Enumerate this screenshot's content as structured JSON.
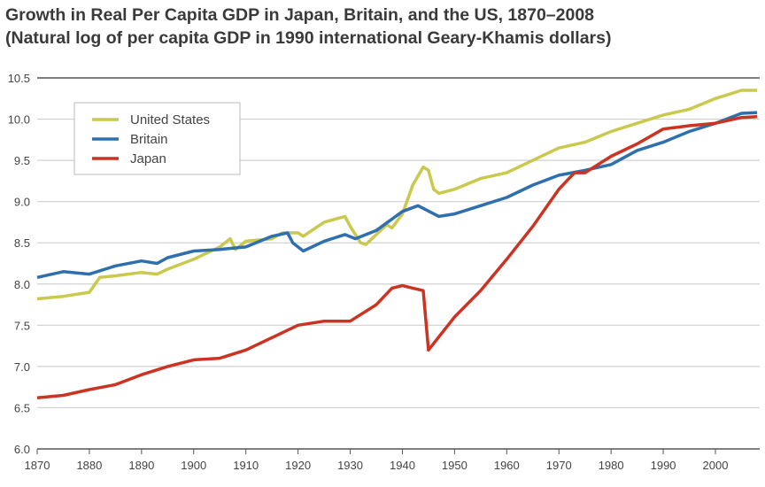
{
  "chart_data": {
    "type": "line",
    "title": "Growth in Real Per Capita GDP in Japan, Britain, and the US, 1870–2008",
    "subtitle": "(Natural log of per capita GDP in 1990 international Geary-Khamis dollars)",
    "xlabel": "",
    "ylabel": "",
    "xlim": [
      1870,
      2008
    ],
    "ylim": [
      6.0,
      10.5
    ],
    "xticks": [
      "1870",
      "1880",
      "1890",
      "1900",
      "1910",
      "1920",
      "1930",
      "1940",
      "1950",
      "1960",
      "1970",
      "1980",
      "1990",
      "2000"
    ],
    "yticks": [
      "6.0",
      "6.5",
      "7.0",
      "7.5",
      "8.0",
      "8.5",
      "9.0",
      "9.5",
      "10.0",
      "10.5"
    ],
    "grid": true,
    "legend_position": "top-left",
    "series": [
      {
        "name": "United States",
        "color": "#c9c94e",
        "x": [
          1870,
          1875,
          1880,
          1882,
          1885,
          1890,
          1893,
          1895,
          1900,
          1905,
          1907,
          1908,
          1910,
          1915,
          1917,
          1920,
          1921,
          1925,
          1929,
          1930,
          1932,
          1933,
          1935,
          1937,
          1938,
          1940,
          1942,
          1944,
          1945,
          1946,
          1947,
          1950,
          1955,
          1960,
          1965,
          1970,
          1975,
          1980,
          1985,
          1990,
          1995,
          2000,
          2005,
          2008
        ],
        "y": [
          7.82,
          7.85,
          7.9,
          8.08,
          8.1,
          8.14,
          8.12,
          8.18,
          8.3,
          8.45,
          8.55,
          8.42,
          8.52,
          8.55,
          8.62,
          8.62,
          8.58,
          8.75,
          8.82,
          8.7,
          8.5,
          8.48,
          8.6,
          8.72,
          8.68,
          8.85,
          9.2,
          9.42,
          9.38,
          9.15,
          9.1,
          9.15,
          9.28,
          9.35,
          9.5,
          9.65,
          9.72,
          9.85,
          9.95,
          10.05,
          10.12,
          10.25,
          10.35,
          10.35
        ]
      },
      {
        "name": "Britain",
        "color": "#2f6fae",
        "x": [
          1870,
          1875,
          1880,
          1885,
          1890,
          1893,
          1895,
          1900,
          1905,
          1910,
          1915,
          1918,
          1919,
          1921,
          1925,
          1929,
          1931,
          1935,
          1940,
          1943,
          1947,
          1950,
          1955,
          1960,
          1965,
          1970,
          1975,
          1980,
          1985,
          1990,
          1995,
          2000,
          2005,
          2008
        ],
        "y": [
          8.08,
          8.15,
          8.12,
          8.22,
          8.28,
          8.25,
          8.32,
          8.4,
          8.42,
          8.45,
          8.58,
          8.62,
          8.5,
          8.4,
          8.52,
          8.6,
          8.55,
          8.65,
          8.88,
          8.95,
          8.82,
          8.85,
          8.95,
          9.05,
          9.2,
          9.32,
          9.38,
          9.45,
          9.62,
          9.72,
          9.85,
          9.95,
          10.07,
          10.08
        ]
      },
      {
        "name": "Japan",
        "color": "#cc3322",
        "x": [
          1870,
          1875,
          1880,
          1885,
          1890,
          1895,
          1900,
          1905,
          1910,
          1915,
          1920,
          1925,
          1930,
          1935,
          1938,
          1940,
          1942,
          1944,
          1945,
          1950,
          1955,
          1960,
          1965,
          1970,
          1973,
          1975,
          1980,
          1985,
          1990,
          1995,
          2000,
          2005,
          2008
        ],
        "y": [
          6.62,
          6.65,
          6.72,
          6.78,
          6.9,
          7.0,
          7.08,
          7.1,
          7.2,
          7.35,
          7.5,
          7.55,
          7.55,
          7.75,
          7.95,
          7.98,
          7.95,
          7.92,
          7.2,
          7.6,
          7.92,
          8.3,
          8.7,
          9.15,
          9.35,
          9.35,
          9.55,
          9.7,
          9.88,
          9.92,
          9.95,
          10.02,
          10.03
        ]
      }
    ]
  }
}
